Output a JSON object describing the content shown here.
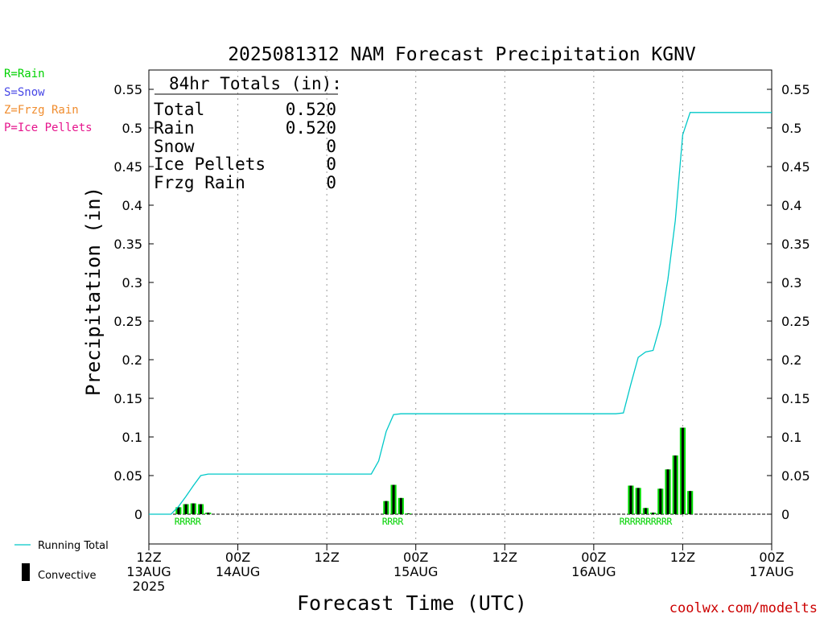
{
  "chart_data": {
    "type": "bar",
    "title": "2025081312 NAM Forecast Precipitation KGNV",
    "xlabel": "Forecast Time (UTC)",
    "ylabel": "Precipitation (in)",
    "ylim": [
      -0.04,
      0.57
    ],
    "xlim_hours": [
      0,
      84
    ],
    "y_ticks": [
      "0",
      "0.05",
      "0.1",
      "0.15",
      "0.2",
      "0.25",
      "0.3",
      "0.35",
      "0.4",
      "0.45",
      "0.5",
      "0.55"
    ],
    "x_ticks": [
      {
        "hour": 0,
        "lines": [
          "12Z",
          "13AUG",
          "2025"
        ]
      },
      {
        "hour": 12,
        "lines": [
          "00Z",
          "14AUG"
        ]
      },
      {
        "hour": 24,
        "lines": [
          "12Z"
        ]
      },
      {
        "hour": 36,
        "lines": [
          "00Z",
          "15AUG"
        ]
      },
      {
        "hour": 48,
        "lines": [
          "12Z"
        ]
      },
      {
        "hour": 60,
        "lines": [
          "00Z",
          "16AUG"
        ]
      },
      {
        "hour": 72,
        "lines": [
          "12Z"
        ]
      },
      {
        "hour": 84,
        "lines": [
          "00Z",
          "17AUG"
        ]
      }
    ],
    "grid": "dotted vertical lines at 12-hour ticks",
    "series": [
      {
        "name": "Running Total",
        "color": "#00c8c8",
        "x": [
          0,
          3,
          4,
          5,
          6,
          7,
          8,
          9,
          10,
          11,
          12,
          30,
          31,
          32,
          33,
          34,
          35,
          36,
          58,
          63,
          64,
          65,
          66,
          67,
          68,
          69,
          70,
          71,
          72,
          73,
          74,
          84
        ],
        "y": [
          0,
          0,
          0.01,
          0.023,
          0.037,
          0.05,
          0.052,
          0.052,
          0.052,
          0.052,
          0.052,
          0.052,
          0.069,
          0.107,
          0.129,
          0.13,
          0.13,
          0.13,
          0.13,
          0.13,
          0.131,
          0.168,
          0.203,
          0.21,
          0.212,
          0.246,
          0.304,
          0.38,
          0.491,
          0.52,
          0.52,
          0.52
        ]
      },
      {
        "name": "Convective",
        "bars": [
          {
            "hour": 4,
            "rain": 0.009,
            "conv": 0.005
          },
          {
            "hour": 5,
            "rain": 0.013,
            "conv": 0.006
          },
          {
            "hour": 6,
            "rain": 0.014,
            "conv": 0.006
          },
          {
            "hour": 7,
            "rain": 0.013,
            "conv": 0.005
          },
          {
            "hour": 8,
            "rain": 0.002,
            "conv": 0.001
          },
          {
            "hour": 32,
            "rain": 0.017,
            "conv": 0.008
          },
          {
            "hour": 33,
            "rain": 0.038,
            "conv": 0.02
          },
          {
            "hour": 34,
            "rain": 0.021,
            "conv": 0.011
          },
          {
            "hour": 35,
            "rain": 0.001,
            "conv": 0.0005
          },
          {
            "hour": 65,
            "rain": 0.037,
            "conv": 0.019
          },
          {
            "hour": 66,
            "rain": 0.034,
            "conv": 0.017
          },
          {
            "hour": 67,
            "rain": 0.008,
            "conv": 0.004
          },
          {
            "hour": 68,
            "rain": 0.002,
            "conv": 0.001
          },
          {
            "hour": 69,
            "rain": 0.033,
            "conv": 0.017
          },
          {
            "hour": 70,
            "rain": 0.058,
            "conv": 0.029
          },
          {
            "hour": 71,
            "rain": 0.076,
            "conv": 0.038
          },
          {
            "hour": 72,
            "rain": 0.112,
            "conv": 0.055
          },
          {
            "hour": 73,
            "rain": 0.03,
            "conv": 0.015
          }
        ]
      }
    ],
    "ptype_labels": [
      {
        "hour": 4,
        "text": "RRRRR"
      },
      {
        "hour": 32,
        "text": "RRRR"
      },
      {
        "hour": 64,
        "text": "RRRRRRRRRR"
      }
    ],
    "totals_box": {
      "heading": "84hr Totals (in):",
      "rows": [
        {
          "label": "Total",
          "value": "0.520"
        },
        {
          "label": "Rain",
          "value": "0.520"
        },
        {
          "label": "Snow",
          "value": "0"
        },
        {
          "label": "Ice Pellets",
          "value": "0"
        },
        {
          "label": "Frzg Rain",
          "value": "0"
        }
      ]
    },
    "ptype_legend": [
      {
        "text": "R=Rain",
        "color": "#00d200"
      },
      {
        "text": "S=Snow",
        "color": "#4646e6"
      },
      {
        "text": "Z=Frzg Rain",
        "color": "#f08c2d"
      },
      {
        "text": "P=Ice Pellets",
        "color": "#e6148c"
      }
    ],
    "legend": {
      "running_total": "Running Total",
      "convective": "Convective"
    },
    "colors": {
      "line": "#00c8c8",
      "rain": "#00dc00",
      "convective": "#000000",
      "credit": "#cc0000"
    },
    "credit": "coolwx.com/modelts"
  }
}
